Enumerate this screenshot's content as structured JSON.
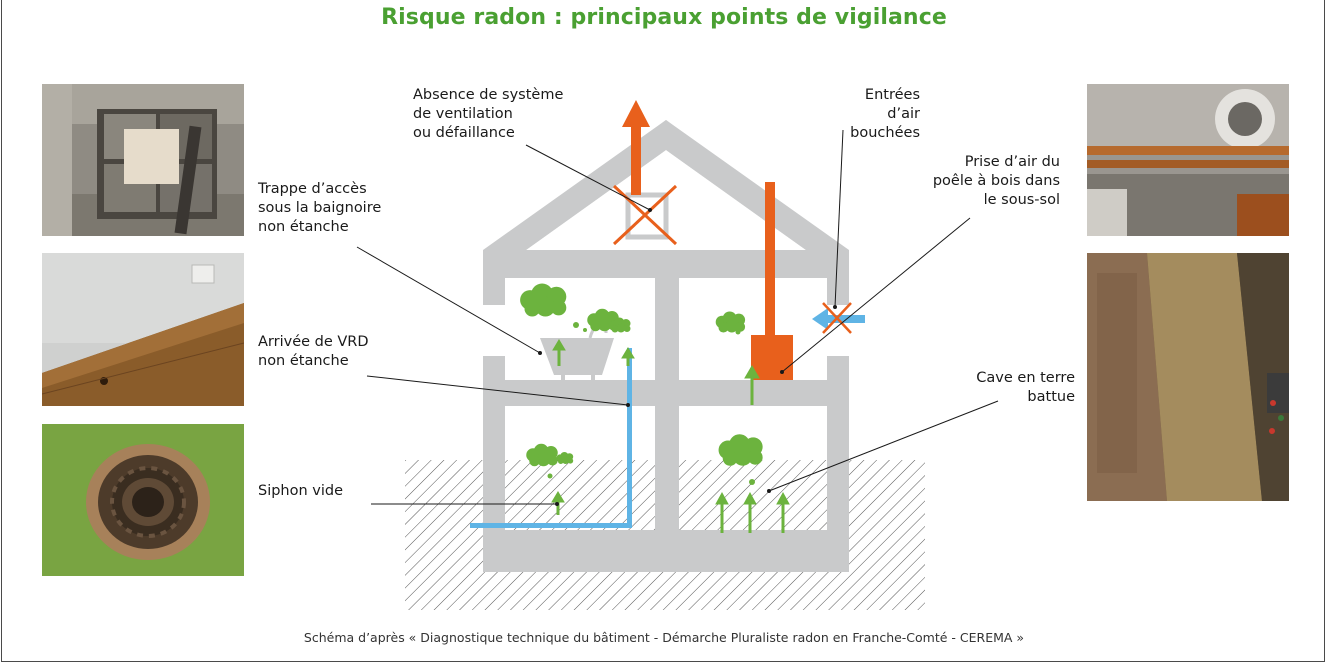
{
  "title": "Risque radon : principaux points de vigilance",
  "caption": "Schéma d’après «  Diagnostique technique du bâtiment - Démarche Pluraliste radon en Franche-Comté - CEREMA »",
  "labels": {
    "ventilation": "Absence de système\nde ventilation\nou défaillance",
    "air_inlets": "Entrées\nd’air bouchées",
    "stove": "Prise d’air du\npoêle à bois dans\nle sous-sol",
    "bath_hatch": "Trappe d’accès\nsous la baignoire\nnon étanche",
    "vrd": "Arrivée de VRD\nnon étanche",
    "cellar": "Cave en terre\nbattue",
    "siphon": "Siphon vide"
  },
  "photos": {
    "left": [
      "wall-hatch-photo",
      "wall-floor-joint-photo",
      "floor-drain-photo"
    ],
    "right": [
      "pipes-wall-photo",
      "earth-cellar-photo"
    ]
  },
  "colors": {
    "title_green": "#4aa032",
    "radon_green": "#6cb33e",
    "house_gray": "#c9cacb",
    "ventilation_orange": "#e8601c",
    "water_blue": "#5fb4e5"
  }
}
